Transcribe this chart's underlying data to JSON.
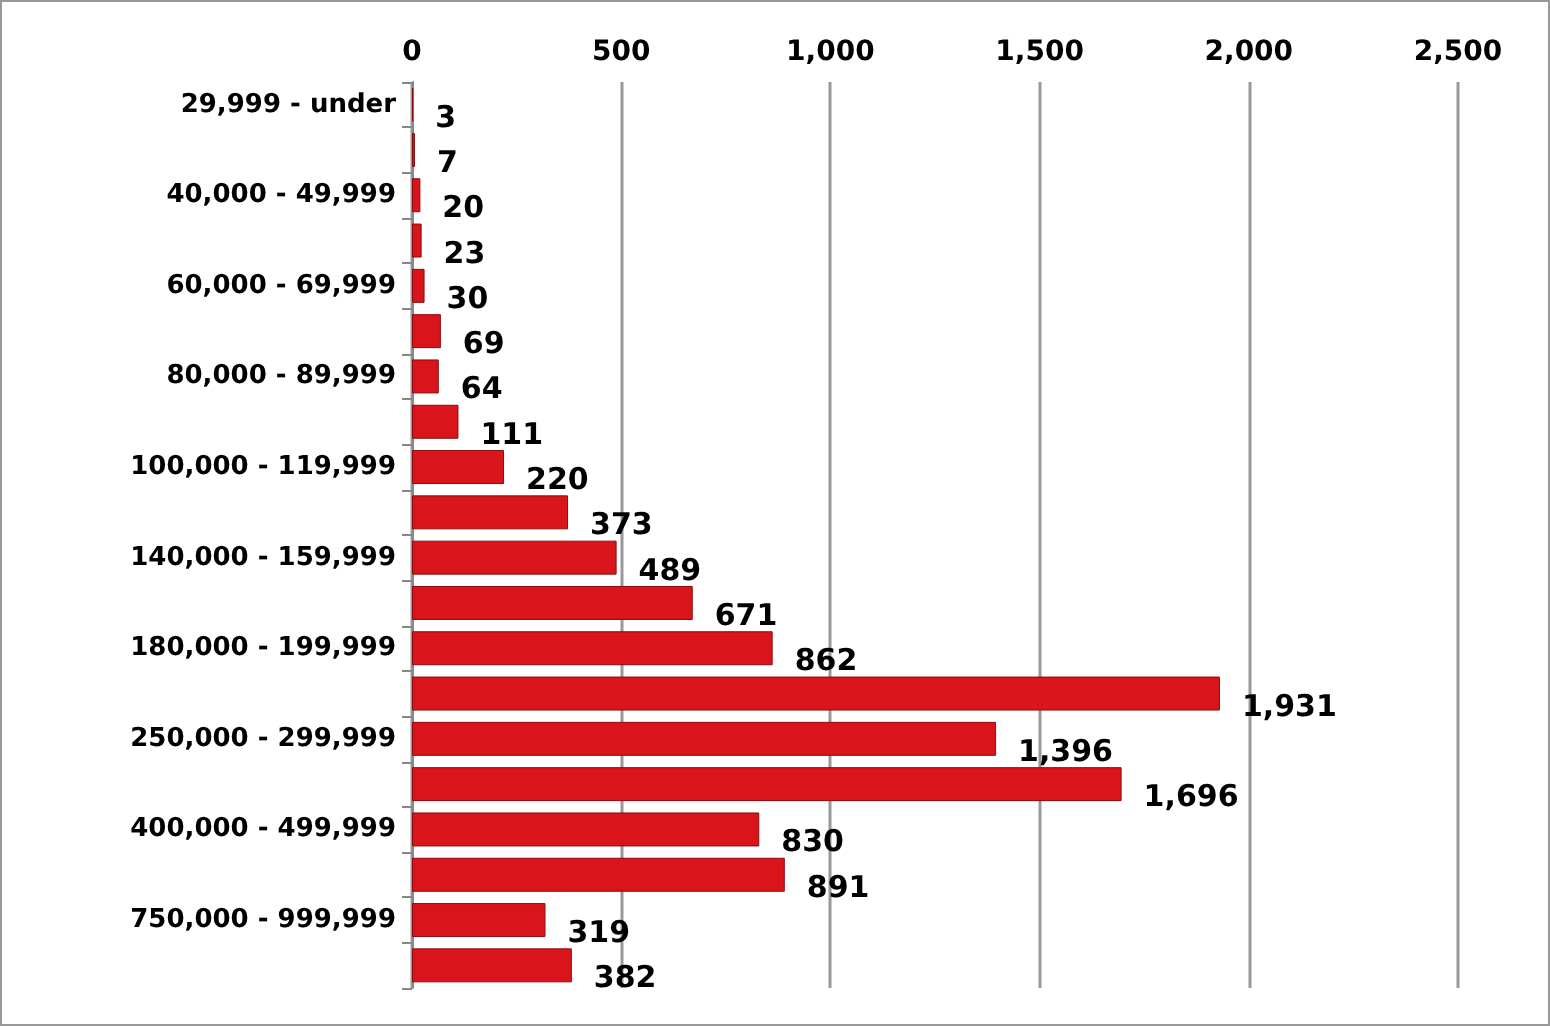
{
  "chart_data": {
    "type": "bar",
    "orientation": "horizontal",
    "categories": [
      "29,999 - under",
      null,
      "40,000 - 49,999",
      null,
      "60,000 - 69,999",
      null,
      "80,000 - 89,999",
      null,
      "100,000 - 119,999",
      null,
      "140,000 - 159,999",
      null,
      "180,000 - 199,999",
      null,
      "250,000 - 299,999",
      null,
      "400,000 - 499,999",
      null,
      "750,000 - 999,999",
      null
    ],
    "values": [
      3,
      7,
      20,
      23,
      30,
      69,
      64,
      111,
      220,
      373,
      489,
      671,
      862,
      1931,
      1396,
      1696,
      830,
      891,
      319,
      382
    ],
    "color": "#d9141b",
    "value_labels": [
      "3",
      "7",
      "20",
      "23",
      "30",
      "69",
      "64",
      "111",
      "220",
      "373",
      "489",
      "671",
      "862",
      "1,931",
      "1,396",
      "1,696",
      "830",
      "891",
      "319",
      "382"
    ],
    "xlim": [
      0,
      2500
    ],
    "xticks": [
      0,
      500,
      {
        "value": 1000,
        "label": "1,000"
      },
      {
        "value": 1500,
        "label": "1,500"
      },
      {
        "value": 2000,
        "label": "2,000"
      },
      {
        "value": 2500,
        "label": "2,500"
      }
    ],
    "grid": "x"
  }
}
